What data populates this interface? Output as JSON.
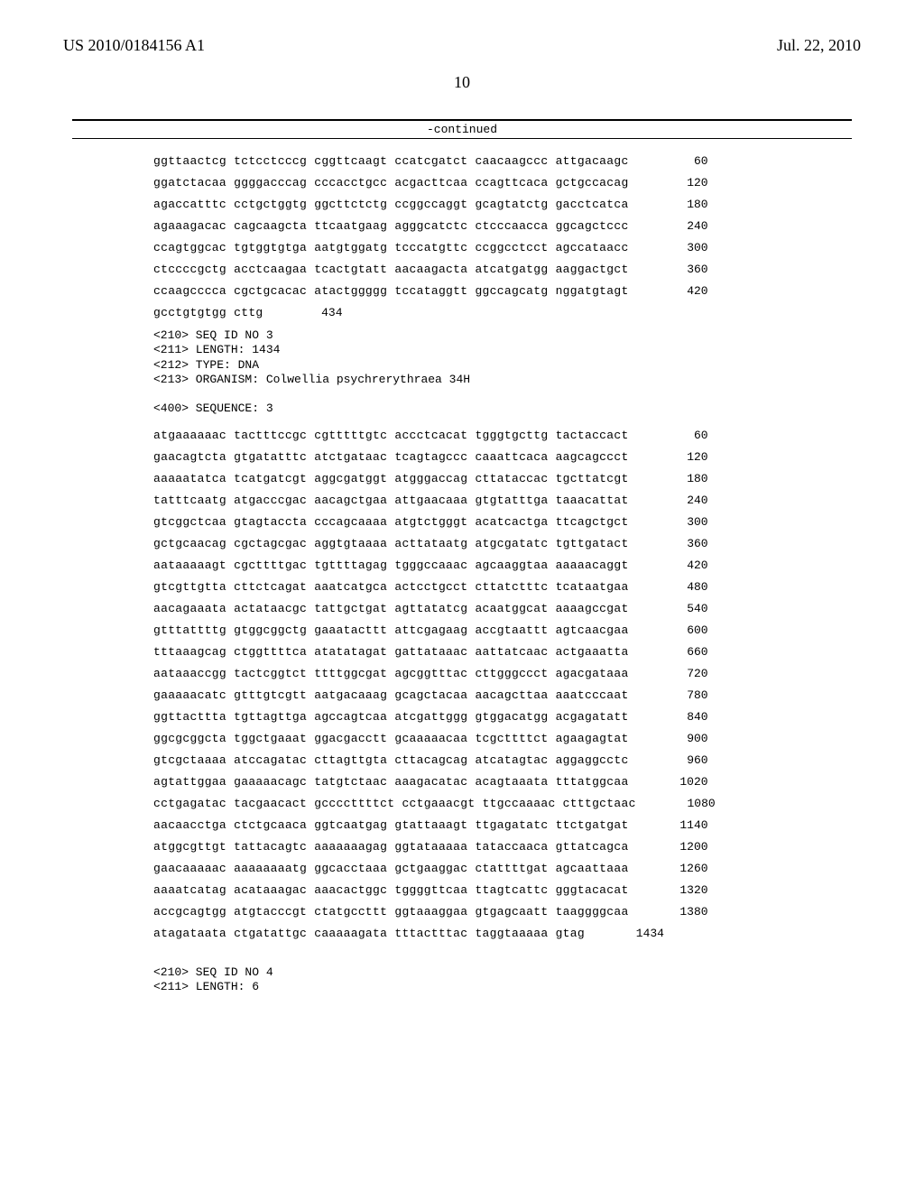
{
  "header": {
    "publication_number": "US 2010/0184156 A1",
    "publication_date": "Jul. 22, 2010",
    "page_number": "10",
    "continued_label": "-continued"
  },
  "sequence_top": {
    "lines": [
      {
        "text": "ggttaactcg tctcctcccg cggttcaagt ccatcgatct caacaagccc attgacaagc",
        "num": "60"
      },
      {
        "text": "ggatctacaa ggggacccag cccacctgcc acgacttcaa ccagttcaca gctgccacag",
        "num": "120"
      },
      {
        "text": "agaccatttc cctgctggtg ggcttctctg ccggccaggt gcagtatctg gacctcatca",
        "num": "180"
      },
      {
        "text": "agaaagacac cagcaagcta ttcaatgaag agggcatctc ctcccaacca ggcagctccc",
        "num": "240"
      },
      {
        "text": "ccagtggcac tgtggtgtga aatgtggatg tcccatgttc ccggcctcct agccataacc",
        "num": "300"
      },
      {
        "text": "ctccccgctg acctcaagaa tcactgtatt aacaagacta atcatgatgg aaggactgct",
        "num": "360"
      },
      {
        "text": "ccaagcccca cgctgcacac atactggggg tccataggtt ggccagcatg nggatgtagt",
        "num": "420"
      },
      {
        "text": "gcctgtgtgg cttg",
        "num": "434"
      }
    ]
  },
  "meta_seq3": {
    "lines": [
      "<210> SEQ ID NO 3",
      "<211> LENGTH: 1434",
      "<212> TYPE: DNA",
      "<213> ORGANISM: Colwellia psychrerythraea 34H",
      "",
      "<400> SEQUENCE: 3"
    ]
  },
  "sequence3": {
    "lines": [
      {
        "text": "atgaaaaaac tactttccgc cgtttttgtc accctcacat tgggtgcttg tactaccact",
        "num": "60"
      },
      {
        "text": "gaacagtcta gtgatatttc atctgataac tcagtagccc caaattcaca aagcagccct",
        "num": "120"
      },
      {
        "text": "aaaaatatca tcatgatcgt aggcgatggt atgggaccag cttataccac tgcttatcgt",
        "num": "180"
      },
      {
        "text": "tatttcaatg atgacccgac aacagctgaa attgaacaaa gtgtatttga taaacattat",
        "num": "240"
      },
      {
        "text": "gtcggctcaa gtagtaccta cccagcaaaa atgtctgggt acatcactga ttcagctgct",
        "num": "300"
      },
      {
        "text": "gctgcaacag cgctagcgac aggtgtaaaa acttataatg atgcgatatc tgttgatact",
        "num": "360"
      },
      {
        "text": "aataaaaagt cgcttttgac tgttttagag tgggccaaac agcaaggtaa aaaaacaggt",
        "num": "420"
      },
      {
        "text": "gtcgttgtta cttctcagat aaatcatgca actcctgcct cttatctttc tcataatgaa",
        "num": "480"
      },
      {
        "text": "aacagaaata actataacgc tattgctgat agttatatcg acaatggcat aaaagccgat",
        "num": "540"
      },
      {
        "text": "gtttattttg gtggcggctg gaaatacttt attcgagaag accgtaattt agtcaacgaa",
        "num": "600"
      },
      {
        "text": "tttaaagcag ctggttttca atatatagat gattataaac aattatcaac actgaaatta",
        "num": "660"
      },
      {
        "text": "aataaaccgg tactcggtct ttttggcgat agcggtttac cttgggccct agacgataaa",
        "num": "720"
      },
      {
        "text": "gaaaaacatc gtttgtcgtt aatgacaaag gcagctacaa aacagcttaa aaatcccaat",
        "num": "780"
      },
      {
        "text": "ggttacttta tgttagttga agccagtcaa atcgattggg gtggacatgg acgagatatt",
        "num": "840"
      },
      {
        "text": "ggcgcggcta tggctgaaat ggacgacctt gcaaaaacaa tcgcttttct agaagagtat",
        "num": "900"
      },
      {
        "text": "gtcgctaaaa atccagatac cttagttgta cttacagcag atcatagtac aggaggcctc",
        "num": "960"
      },
      {
        "text": "agtattggaa gaaaaacagc tatgtctaac aaagacatac acagtaaata tttatggcaa",
        "num": "1020"
      },
      {
        "text": "cctgagatac tacgaacact gccccttttct cctgaaacgt ttgccaaaac ctttgctaac",
        "num": "1080"
      },
      {
        "text": "aacaacctga ctctgcaaca ggtcaatgag gtattaaagt ttgagatatc ttctgatgat",
        "num": "1140"
      },
      {
        "text": "atggcgttgt tattacagtc aaaaaaagag ggtataaaaa tataccaaca gttatcagca",
        "num": "1200"
      },
      {
        "text": "gaacaaaaac aaaaaaaatg ggcacctaaa gctgaaggac ctattttgat agcaattaaa",
        "num": "1260"
      },
      {
        "text": "aaaatcatag acataaagac aaacactggc tggggttcaa ttagtcattc gggtacacat",
        "num": "1320"
      },
      {
        "text": "accgcagtgg atgtacccgt ctatgccttt ggtaaaggaa gtgagcaatt taaggggcaa",
        "num": "1380"
      },
      {
        "text": "atagataata ctgatattgc caaaaagata tttactttac taggtaaaaa gtag",
        "num": "1434"
      }
    ]
  },
  "meta_seq4": {
    "lines": [
      "<210> SEQ ID NO 4",
      "<211> LENGTH: 6"
    ]
  }
}
